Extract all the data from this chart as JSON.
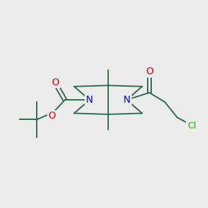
{
  "bg_color": "#ececec",
  "bond_color": "#2d6b4a",
  "n_color": "#0000ee",
  "o_color": "#ee0000",
  "cl_color": "#22aa00",
  "line_width": 1.4,
  "font_size": 9.5,
  "figsize": [
    3.0,
    3.0
  ],
  "dpi": 100,
  "xlim": [
    0,
    10
  ],
  "ylim": [
    1,
    9
  ]
}
